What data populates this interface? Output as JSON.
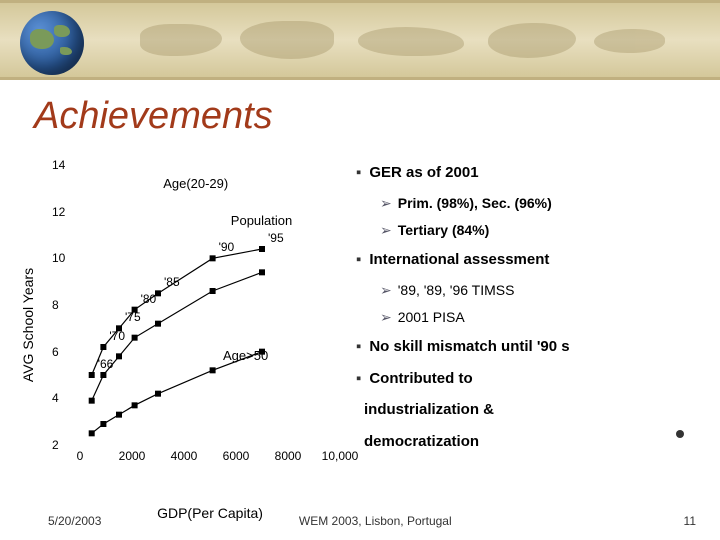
{
  "title": {
    "text": "Achievements",
    "color": "#a23a1a",
    "fontsize": 38
  },
  "bullets": {
    "items": [
      {
        "level": 1,
        "text": "GER as of 2001",
        "bold": true
      },
      {
        "level": 2,
        "text": "Prim. (98%), Sec. (96%)",
        "bold": true
      },
      {
        "level": 2,
        "text": "Tertiary (84%)",
        "bold": true
      },
      {
        "level": 1,
        "text": "International assessment",
        "bold": true
      },
      {
        "level": 2,
        "text": "'89, '89, '96 TIMSS",
        "bold": false
      },
      {
        "level": 2,
        "text": "2001 PISA",
        "bold": false
      },
      {
        "level": 1,
        "text": "No skill mismatch until '90 s",
        "bold": true
      },
      {
        "level": 1,
        "text": "Contributed to",
        "bold": true
      },
      {
        "level": 1,
        "text": "industrialization &",
        "bold": true,
        "noMarker": true
      },
      {
        "level": 1,
        "text": "democratization",
        "bold": true,
        "noMarker": true
      }
    ],
    "marker1": "▪",
    "marker2": "➢"
  },
  "chart": {
    "type": "scatter-line",
    "ylabel": "AVG School Years",
    "xlabel": "GDP(Per Capita)",
    "xlim": [
      0,
      10000
    ],
    "ylim": [
      2,
      14
    ],
    "xticks": [
      0,
      2000,
      4000,
      6000,
      8000,
      10000
    ],
    "xtick_labels": [
      "0",
      "2000",
      "4000",
      "6000",
      "8000",
      "10,000"
    ],
    "yticks": [
      2,
      4,
      6,
      8,
      10,
      12,
      14
    ],
    "background_color": "#ffffff",
    "axis_color": "#000000",
    "label_fontsize": 14,
    "tick_fontsize": 12,
    "series": [
      {
        "name": "Age(20-29)",
        "label_pos": {
          "x": 3200,
          "y": 13.2
        },
        "marker": "square",
        "marker_color": "#000000",
        "line_color": "#000000",
        "points": [
          {
            "x": 450,
            "y": 5.0,
            "label": "'66"
          },
          {
            "x": 900,
            "y": 6.2,
            "label": "'70"
          },
          {
            "x": 1500,
            "y": 7.0,
            "label": "'75"
          },
          {
            "x": 2100,
            "y": 7.8,
            "label": "'80"
          },
          {
            "x": 3000,
            "y": 8.5,
            "label": "'85"
          },
          {
            "x": 5100,
            "y": 10.0,
            "label": "'90"
          },
          {
            "x": 7000,
            "y": 10.4,
            "label": "'95"
          }
        ]
      },
      {
        "name": "Population",
        "label_pos": {
          "x": 5800,
          "y": 11.6
        },
        "marker": "square",
        "marker_color": "#000000",
        "line_color": "#000000",
        "points": [
          {
            "x": 450,
            "y": 3.9
          },
          {
            "x": 900,
            "y": 5.0
          },
          {
            "x": 1500,
            "y": 5.8
          },
          {
            "x": 2100,
            "y": 6.6
          },
          {
            "x": 3000,
            "y": 7.2
          },
          {
            "x": 5100,
            "y": 8.6
          },
          {
            "x": 7000,
            "y": 9.4
          }
        ]
      },
      {
        "name": "Age>50",
        "label_pos": {
          "x": 5500,
          "y": 5.8
        },
        "marker": "square",
        "marker_color": "#000000",
        "line_color": "#000000",
        "points": [
          {
            "x": 450,
            "y": 2.5
          },
          {
            "x": 900,
            "y": 2.9
          },
          {
            "x": 1500,
            "y": 3.3
          },
          {
            "x": 2100,
            "y": 3.7
          },
          {
            "x": 3000,
            "y": 4.2
          },
          {
            "x": 5100,
            "y": 5.2
          },
          {
            "x": 7000,
            "y": 6.0
          }
        ]
      }
    ]
  },
  "footer": {
    "date": "5/20/2003",
    "center": "WEM 2003, Lisbon, Portugal",
    "page": "11"
  }
}
